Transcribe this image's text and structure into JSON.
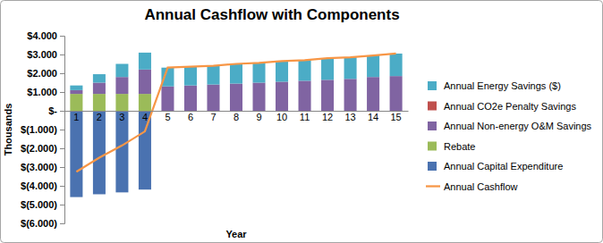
{
  "chart_data": {
    "type": "bar",
    "stacked": true,
    "title": "Annual Cashflow with Components",
    "xlabel": "Year",
    "ylabel": "Thousands",
    "grid": false,
    "legend": "right",
    "categories": [
      "1",
      "2",
      "3",
      "4",
      "5",
      "6",
      "7",
      "8",
      "9",
      "10",
      "11",
      "12",
      "13",
      "14",
      "15"
    ],
    "ylim": [
      -6000,
      4000
    ],
    "yticks": [
      {
        "value": 4000,
        "label": "$4.000"
      },
      {
        "value": 3000,
        "label": "$3.000"
      },
      {
        "value": 2000,
        "label": "$2.000"
      },
      {
        "value": 1000,
        "label": "$1.000"
      },
      {
        "value": 0,
        "label": "$-"
      },
      {
        "value": -1000,
        "label": "$(1.000)"
      },
      {
        "value": -2000,
        "label": "$(2.000)"
      },
      {
        "value": -3000,
        "label": "$(3.000)"
      },
      {
        "value": -4000,
        "label": "$(4.000)"
      },
      {
        "value": -5000,
        "label": "$(5.000)"
      },
      {
        "value": -6000,
        "label": "$(6.000)"
      }
    ],
    "series": [
      {
        "name": "Annual Capital Expenditure",
        "type": "bar",
        "color": "#4a72b0",
        "values": [
          -4600,
          -4450,
          -4350,
          -4200,
          0,
          0,
          0,
          0,
          0,
          0,
          0,
          0,
          0,
          0,
          0
        ]
      },
      {
        "name": "Rebate",
        "type": "bar",
        "color": "#9bbb59",
        "values": [
          900,
          900,
          900,
          900,
          0,
          0,
          0,
          0,
          0,
          0,
          0,
          0,
          0,
          0,
          0
        ]
      },
      {
        "name": "Annual Non-energy O&M Savings",
        "type": "bar",
        "color": "#8064a2",
        "values": [
          200,
          600,
          900,
          1300,
          1300,
          1350,
          1400,
          1450,
          1500,
          1550,
          1600,
          1650,
          1700,
          1800,
          1850
        ]
      },
      {
        "name": "Annual CO2e Penalty Savings",
        "type": "bar",
        "color": "#c0504d",
        "values": [
          0,
          0,
          0,
          0,
          0,
          0,
          0,
          0,
          0,
          0,
          0,
          0,
          0,
          0,
          0
        ]
      },
      {
        "name": "Annual Energy Savings ($)",
        "type": "bar",
        "color": "#4bacc6",
        "values": [
          250,
          450,
          700,
          900,
          1000,
          1000,
          1000,
          1050,
          1050,
          1100,
          1100,
          1150,
          1150,
          1150,
          1200
        ]
      },
      {
        "name": "Annual Cashflow",
        "type": "line",
        "color": "#f79646",
        "values": [
          -3250,
          -2500,
          -1850,
          -1100,
          2300,
          2350,
          2400,
          2500,
          2550,
          2650,
          2700,
          2800,
          2850,
          2950,
          3050
        ]
      }
    ]
  }
}
